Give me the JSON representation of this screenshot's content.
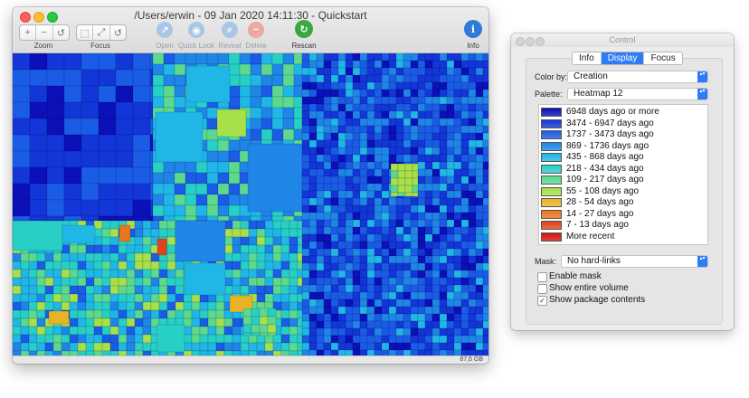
{
  "window": {
    "title": "/Users/erwin - 09 Jan 2020 14:11:30 - Quickstart",
    "status_size": "87,6 GB"
  },
  "toolbar": {
    "zoom_label": "Zoom",
    "focus_label": "Focus",
    "zoom_buttons": [
      "+",
      "−",
      "↺"
    ],
    "focus_buttons": [
      "⬚",
      "⤢",
      "↺"
    ],
    "open_label": "Open",
    "quicklook_label": "Quick Look",
    "reveal_label": "Reveal",
    "delete_label": "Delete",
    "rescan_label": "Rescan",
    "info_label": "Info",
    "info_glyph": "i",
    "open_glyph": "↗",
    "quicklook_glyph": "◉",
    "reveal_glyph": "⌕",
    "delete_glyph": "−",
    "rescan_glyph": "↻"
  },
  "control": {
    "title": "Control",
    "tabs": [
      "Info",
      "Display",
      "Focus"
    ],
    "active_tab": "Display",
    "color_by_label": "Color by:",
    "color_by_value": "Creation",
    "palette_label": "Palette:",
    "palette_value": "Heatmap 12",
    "legend": [
      {
        "label": "6948 days ago or more",
        "color": "#0b10b8"
      },
      {
        "label": "3474 - 6947 days ago",
        "color": "#1236d8"
      },
      {
        "label": "1737 - 3473 days ago",
        "color": "#1a5ce6"
      },
      {
        "label": "869 - 1736 days ago",
        "color": "#1f86e8"
      },
      {
        "label": "435 - 868 days ago",
        "color": "#20b6e6"
      },
      {
        "label": "218 - 434 days ago",
        "color": "#28cfc4"
      },
      {
        "label": "109 - 217 days ago",
        "color": "#5cd88f"
      },
      {
        "label": "55 - 108 days ago",
        "color": "#a8e04a"
      },
      {
        "label": "28 - 54 days ago",
        "color": "#e8b426"
      },
      {
        "label": "14 - 27 days ago",
        "color": "#e8761d"
      },
      {
        "label": "7 - 13 days ago",
        "color": "#e04418"
      },
      {
        "label": "More recent",
        "color": "#d41212"
      }
    ],
    "mask_label": "Mask:",
    "mask_value": "No hard-links",
    "checkboxes": [
      {
        "label": "Enable mask",
        "checked": false
      },
      {
        "label": "Show entire volume",
        "checked": false
      },
      {
        "label": "Show package contents",
        "checked": true
      }
    ],
    "check_glyph": "✓",
    "popup_arrow_glyph": "▴▾"
  }
}
